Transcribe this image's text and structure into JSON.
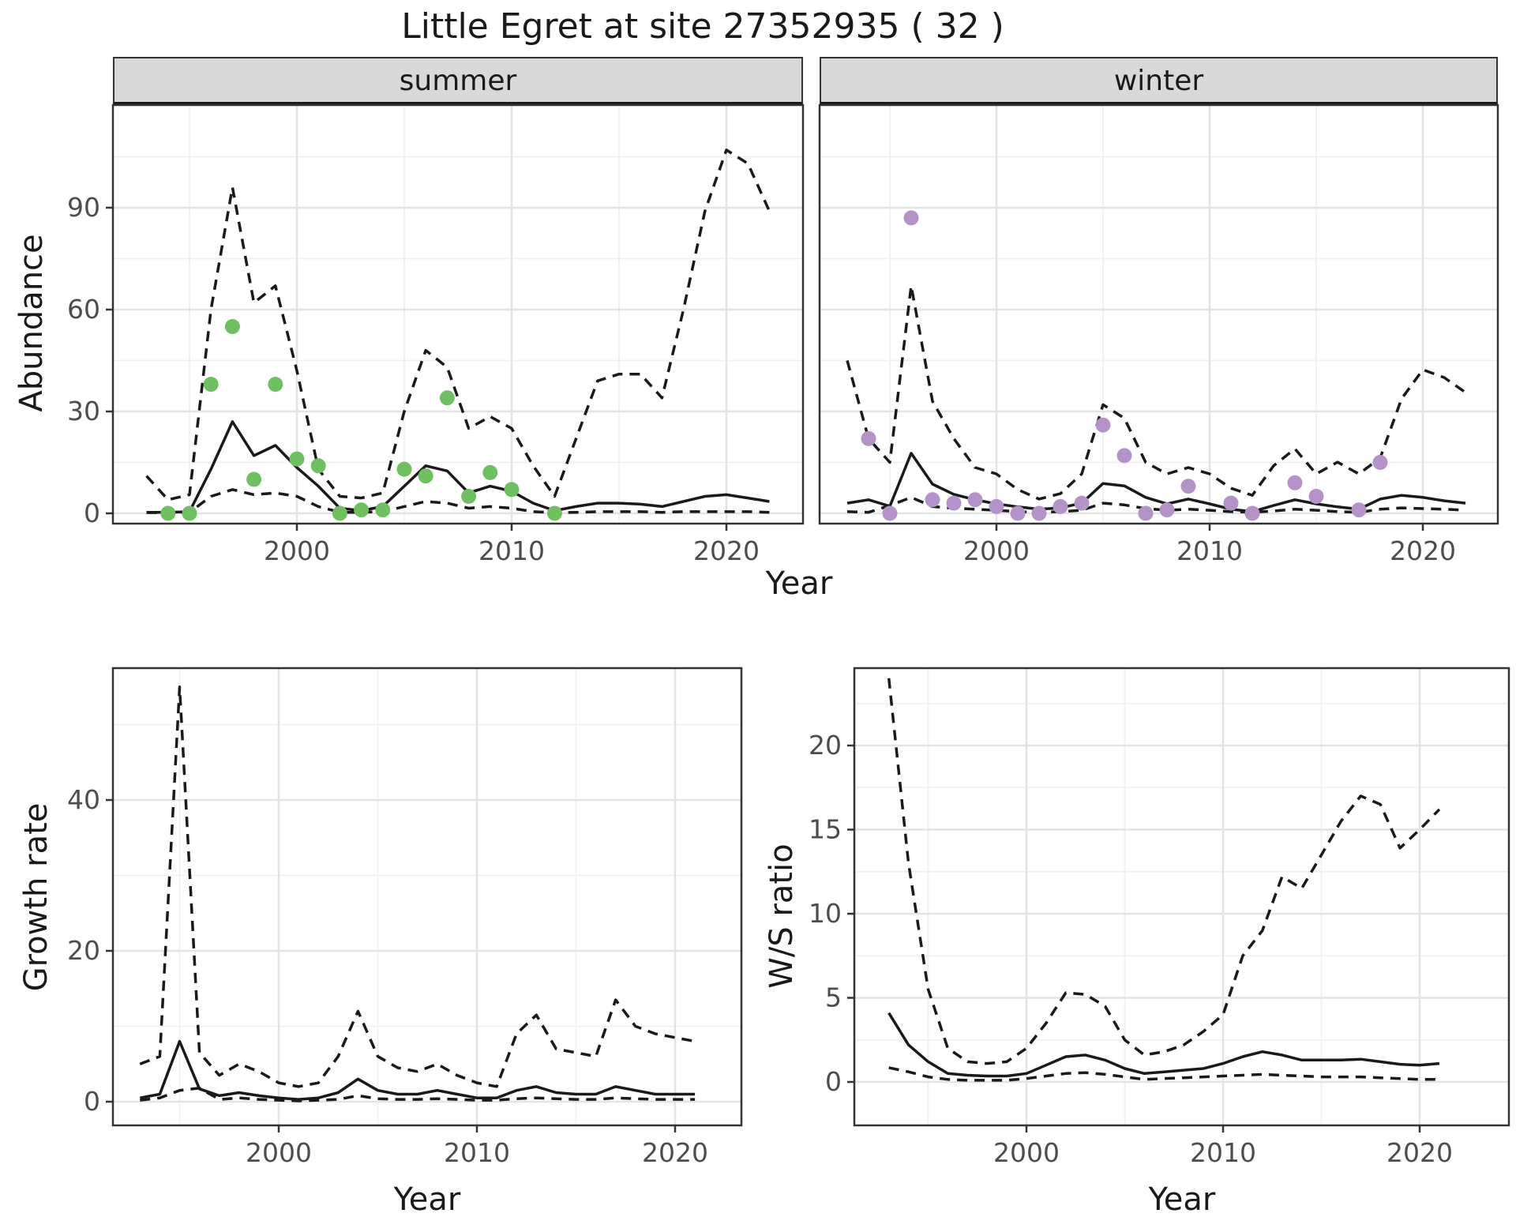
{
  "title": "Little Egret at site 27352935 ( 32 )",
  "colors": {
    "summer_point": "#70bf62",
    "winter_point": "#b493c8",
    "line": "#1a1a1a",
    "strip_bg": "#d9d9d9",
    "grid_major": "#e3e3e3",
    "grid_minor": "#f0f0f0",
    "panel_border": "#333333",
    "tick_label": "#4d4d4d"
  },
  "chart_data": [
    {
      "id": "abundance-summer",
      "type": "line",
      "facet_label": "summer",
      "xlabel": "Year",
      "ylabel": "Abundance",
      "x_ticks": [
        2000,
        2010,
        2020
      ],
      "x_minor": [
        1995,
        2005,
        2015
      ],
      "y_ticks": [
        0,
        30,
        60,
        90
      ],
      "y_minor": [
        15,
        45,
        75,
        105
      ],
      "years": [
        1993,
        1994,
        1995,
        1996,
        1997,
        1998,
        1999,
        2000,
        2001,
        2002,
        2003,
        2004,
        2005,
        2006,
        2007,
        2008,
        2009,
        2010,
        2011,
        2012,
        2013,
        2014,
        2015,
        2016,
        2017,
        2018,
        2019,
        2020,
        2021,
        2022
      ],
      "series": [
        {
          "name": "median",
          "style": "solid",
          "values": [
            0.3,
            0.3,
            0.5,
            13,
            27,
            17,
            20,
            13.5,
            8,
            1.5,
            0.8,
            2,
            8,
            14,
            12.5,
            6,
            8,
            6.5,
            3,
            0.8,
            2,
            3,
            3,
            2.7,
            2,
            3.5,
            5,
            5.5,
            4.5,
            3.5
          ]
        },
        {
          "name": "lower-ci",
          "style": "dashed",
          "values": [
            0.2,
            0.2,
            0.3,
            5,
            7,
            5.5,
            6,
            5,
            2,
            0.3,
            0.3,
            0.5,
            2,
            3.5,
            3,
            1.5,
            2,
            1.5,
            0.5,
            0.2,
            0.3,
            0.5,
            0.5,
            0.5,
            0.3,
            0.5,
            0.5,
            0.5,
            0.5,
            0.3
          ]
        },
        {
          "name": "upper-ci",
          "style": "dashed",
          "values": [
            11,
            4,
            5.5,
            60,
            96,
            62,
            67,
            42,
            13,
            5,
            4.5,
            6,
            30,
            48,
            43,
            25,
            28.5,
            25,
            14,
            5,
            22,
            39,
            41,
            41,
            34,
            60,
            89,
            107,
            103,
            89
          ]
        }
      ],
      "points": {
        "name": "observed-summer-counts",
        "color_key": "summer_point",
        "data": [
          [
            1994,
            0
          ],
          [
            1995,
            0
          ],
          [
            1996,
            38
          ],
          [
            1997,
            55
          ],
          [
            1998,
            10
          ],
          [
            1999,
            38
          ],
          [
            2000,
            16
          ],
          [
            2001,
            14
          ],
          [
            2002,
            0
          ],
          [
            2003,
            1
          ],
          [
            2004,
            1
          ],
          [
            2005,
            13
          ],
          [
            2006,
            11
          ],
          [
            2007,
            34
          ],
          [
            2008,
            5
          ],
          [
            2009,
            12
          ],
          [
            2010,
            7
          ],
          [
            2012,
            0
          ]
        ]
      }
    },
    {
      "id": "abundance-winter",
      "type": "line",
      "facet_label": "winter",
      "xlabel": "Year",
      "ylabel": "Abundance",
      "x_ticks": [
        2000,
        2010,
        2020
      ],
      "x_minor": [
        1995,
        2005,
        2015
      ],
      "y_ticks": [
        0,
        30,
        60,
        90
      ],
      "y_minor": [
        15,
        45,
        75,
        105
      ],
      "years": [
        1993,
        1994,
        1995,
        1996,
        1997,
        1998,
        1999,
        2000,
        2001,
        2002,
        2003,
        2004,
        2005,
        2006,
        2007,
        2008,
        2009,
        2010,
        2011,
        2012,
        2013,
        2014,
        2015,
        2016,
        2017,
        2018,
        2019,
        2020,
        2021,
        2022
      ],
      "series": [
        {
          "name": "median",
          "style": "solid",
          "values": [
            3,
            4,
            2.1,
            17.7,
            8.6,
            5.6,
            4,
            2.8,
            1.9,
            1.2,
            1.6,
            3,
            8.8,
            8.1,
            4.7,
            2.8,
            4.2,
            2.8,
            1.2,
            0.5,
            2.3,
            4,
            2.8,
            1.9,
            1.2,
            4.2,
            5.3,
            4.7,
            3.7,
            3
          ]
        },
        {
          "name": "lower-ci",
          "style": "dashed",
          "values": [
            0.5,
            0.3,
            2.3,
            4.7,
            2,
            1.5,
            1.2,
            0.9,
            0.5,
            0.3,
            0.5,
            0.9,
            3,
            2.5,
            1.4,
            0.9,
            1.2,
            0.9,
            0.5,
            0.3,
            0.7,
            1.2,
            0.9,
            0.5,
            0.3,
            1.2,
            1.6,
            1.4,
            1.2,
            0.9
          ]
        },
        {
          "name": "upper-ci",
          "style": "dashed",
          "values": [
            45,
            22,
            15,
            67,
            33,
            22,
            13.5,
            11.6,
            7,
            4.2,
            5.8,
            11.6,
            32,
            28,
            15,
            11.6,
            13.5,
            11.6,
            7.4,
            5.3,
            14,
            19,
            11.6,
            15.1,
            11.6,
            16.3,
            33.7,
            42.3,
            40,
            35.6
          ]
        }
      ],
      "points": {
        "name": "observed-winter-counts",
        "color_key": "winter_point",
        "data": [
          [
            1994,
            22
          ],
          [
            1995,
            0
          ],
          [
            1996,
            87
          ],
          [
            1997,
            4
          ],
          [
            1998,
            3
          ],
          [
            1999,
            4
          ],
          [
            2000,
            2
          ],
          [
            2001,
            0
          ],
          [
            2002,
            0
          ],
          [
            2003,
            2
          ],
          [
            2004,
            3
          ],
          [
            2005,
            26
          ],
          [
            2006,
            17
          ],
          [
            2007,
            0
          ],
          [
            2008,
            1
          ],
          [
            2009,
            8
          ],
          [
            2011,
            3
          ],
          [
            2012,
            0
          ],
          [
            2014,
            9
          ],
          [
            2015,
            5
          ],
          [
            2017,
            1
          ],
          [
            2018,
            15
          ]
        ]
      }
    },
    {
      "id": "growth-rate",
      "type": "line",
      "facet_label": "",
      "xlabel": "Year",
      "ylabel": "Growth rate",
      "x_ticks": [
        2000,
        2010,
        2020
      ],
      "x_minor": [
        1995,
        2005,
        2015
      ],
      "y_ticks": [
        0,
        20,
        40
      ],
      "y_minor": [
        10,
        30,
        50
      ],
      "years": [
        1993,
        1994,
        1995,
        1996,
        1997,
        1998,
        1999,
        2000,
        2001,
        2002,
        2003,
        2004,
        2005,
        2006,
        2007,
        2008,
        2009,
        2010,
        2011,
        2012,
        2013,
        2014,
        2015,
        2016,
        2017,
        2018,
        2019,
        2020,
        2021
      ],
      "series": [
        {
          "name": "median",
          "style": "solid",
          "values": [
            0.5,
            1,
            8,
            1.7,
            0.8,
            1.2,
            0.8,
            0.5,
            0.3,
            0.5,
            1.2,
            3,
            1.5,
            1,
            1,
            1.5,
            1,
            0.5,
            0.5,
            1.5,
            2,
            1.2,
            1,
            1,
            2,
            1.5,
            1,
            1,
            1
          ]
        },
        {
          "name": "lower-ci",
          "style": "dashed",
          "values": [
            0.2,
            0.5,
            1.5,
            1.8,
            0.3,
            0.5,
            0.3,
            0.2,
            0.1,
            0.2,
            0.3,
            0.8,
            0.4,
            0.3,
            0.3,
            0.4,
            0.3,
            0.2,
            0.2,
            0.4,
            0.5,
            0.4,
            0.3,
            0.3,
            0.5,
            0.4,
            0.3,
            0.3,
            0.3
          ]
        },
        {
          "name": "upper-ci",
          "style": "dashed",
          "values": [
            5,
            6,
            55,
            6.5,
            3.5,
            5,
            4,
            2.5,
            2,
            2.5,
            6,
            12,
            6,
            4.5,
            4,
            5,
            3.5,
            2.5,
            2,
            9,
            11.5,
            7,
            6.5,
            6,
            13.5,
            10,
            9,
            8.5,
            8
          ]
        }
      ],
      "points": null
    },
    {
      "id": "ws-ratio",
      "type": "line",
      "facet_label": "",
      "xlabel": "Year",
      "ylabel": "W/S ratio",
      "x_ticks": [
        2000,
        2010,
        2020
      ],
      "x_minor": [
        1995,
        2005,
        2015
      ],
      "y_ticks": [
        0,
        5,
        10,
        15,
        20
      ],
      "y_minor": [
        2.5,
        7.5,
        12.5,
        17.5,
        22.5
      ],
      "years": [
        1993,
        1994,
        1995,
        1996,
        1997,
        1998,
        1999,
        2000,
        2001,
        2002,
        2003,
        2004,
        2005,
        2006,
        2007,
        2008,
        2009,
        2010,
        2011,
        2012,
        2013,
        2014,
        2015,
        2016,
        2017,
        2018,
        2019,
        2020,
        2021
      ],
      "series": [
        {
          "name": "median",
          "style": "solid",
          "values": [
            4.1,
            2.2,
            1.2,
            0.5,
            0.4,
            0.35,
            0.35,
            0.5,
            1,
            1.5,
            1.6,
            1.3,
            0.8,
            0.5,
            0.6,
            0.7,
            0.8,
            1.1,
            1.5,
            1.8,
            1.6,
            1.3,
            1.3,
            1.3,
            1.35,
            1.2,
            1.05,
            1,
            1.1
          ]
        },
        {
          "name": "lower-ci",
          "style": "dashed",
          "values": [
            0.85,
            0.6,
            0.3,
            0.15,
            0.1,
            0.1,
            0.1,
            0.2,
            0.35,
            0.5,
            0.55,
            0.45,
            0.3,
            0.15,
            0.2,
            0.25,
            0.3,
            0.35,
            0.4,
            0.45,
            0.4,
            0.35,
            0.3,
            0.3,
            0.3,
            0.25,
            0.2,
            0.15,
            0.15
          ]
        },
        {
          "name": "upper-ci",
          "style": "dashed",
          "values": [
            24,
            13,
            5.5,
            2,
            1.2,
            1.1,
            1.2,
            2,
            3.5,
            5.3,
            5.2,
            4.5,
            2.5,
            1.6,
            1.8,
            2.2,
            3,
            4,
            7.5,
            9,
            12.2,
            11.5,
            13.5,
            15.5,
            17,
            16.5,
            13.9,
            15,
            16.2
          ]
        }
      ],
      "points": null
    }
  ]
}
